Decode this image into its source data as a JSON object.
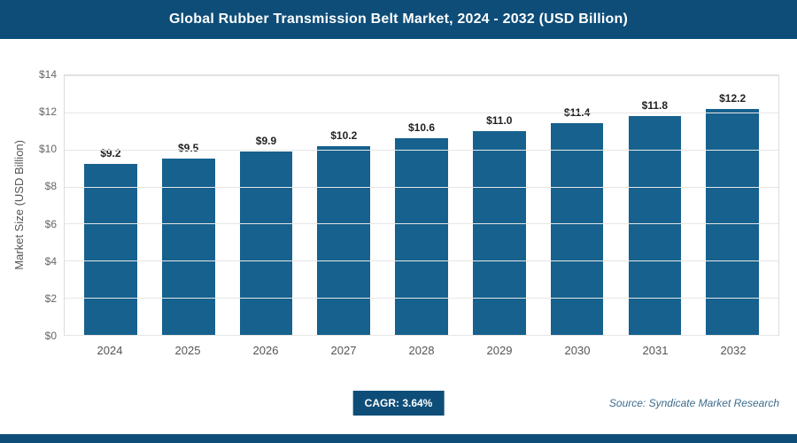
{
  "header": {
    "title": "Global Rubber Transmission Belt Market, 2024 - 2032 (USD Billion)"
  },
  "chart_data": {
    "type": "bar",
    "title": "Global Rubber Transmission Belt Market, 2024 - 2032 (USD Billion)",
    "categories": [
      "2024",
      "2025",
      "2026",
      "2027",
      "2028",
      "2029",
      "2030",
      "2031",
      "2032"
    ],
    "values": [
      9.2,
      9.5,
      9.9,
      10.2,
      10.6,
      11.0,
      11.4,
      11.8,
      12.2
    ],
    "value_labels": [
      "$9.2",
      "$9.5",
      "$9.9",
      "$10.2",
      "$10.6",
      "$11.0",
      "$11.4",
      "$11.8",
      "$12.2"
    ],
    "xlabel": "",
    "ylabel": "Market Size (USD Billion)",
    "ylim": [
      0,
      14
    ],
    "ytick_step": 2,
    "ytick_labels": [
      "$0",
      "$2",
      "$4",
      "$6",
      "$8",
      "$10",
      "$12",
      "$14"
    ],
    "grid": "horizontal",
    "legend_position": "none"
  },
  "footer": {
    "cagr_label": "CAGR: 3.64%",
    "source": "Source: Syndicate Market Research"
  },
  "colors": {
    "header_bg": "#0e4d78",
    "bar_color": "#16618e",
    "badge_bg": "#0e4d78",
    "bottom_bar": "#0e4d78",
    "source_text": "#3c6b8d"
  }
}
